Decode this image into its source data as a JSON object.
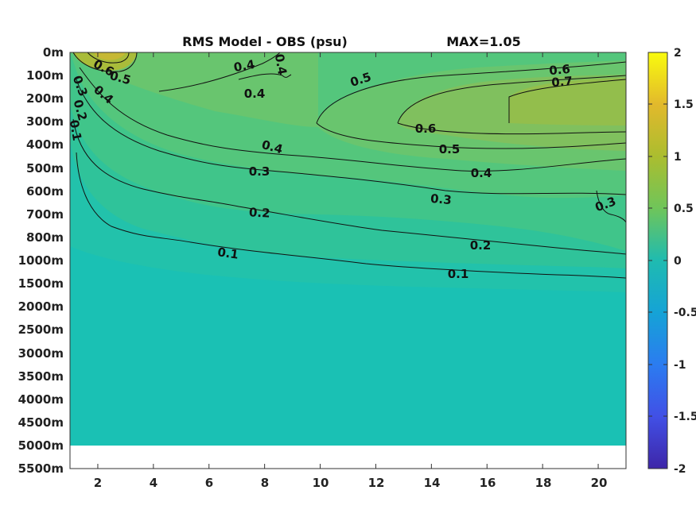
{
  "chart_data": {
    "type": "heatmap",
    "title": "RMS Model - OBS (psu)",
    "max_label": "MAX=1.05",
    "xlabel": "",
    "ylabel": "",
    "x_ticks": [
      "2",
      "4",
      "6",
      "8",
      "10",
      "12",
      "14",
      "16",
      "18",
      "20"
    ],
    "x_range": [
      1,
      21
    ],
    "y_ticks": [
      "0m",
      "100m",
      "200m",
      "300m",
      "400m",
      "500m",
      "600m",
      "700m",
      "800m",
      "1000m",
      "1500m",
      "2000m",
      "2500m",
      "3000m",
      "3500m",
      "4000m",
      "4500m",
      "5000m",
      "5500m"
    ],
    "colorbar": {
      "range": [
        -2,
        2
      ],
      "ticks": [
        "2",
        "1.5",
        "1",
        "0.5",
        "0",
        "-0.5",
        "-1",
        "-1.5",
        "-2"
      ],
      "colormap": "parula"
    },
    "contour_labels": [
      "0.6",
      "0.5",
      "0.4",
      "0.4",
      "0.4",
      "0.3",
      "0.2",
      "0.1",
      "0.4",
      "0.5",
      "0.6",
      "0.7",
      "0.4",
      "0.3",
      "0.2",
      "0.1",
      "0.6",
      "0.5",
      "0.4",
      "0.3",
      "0.3",
      "0.2",
      "0.1"
    ],
    "grid": false,
    "legend": "colorbar-right"
  }
}
